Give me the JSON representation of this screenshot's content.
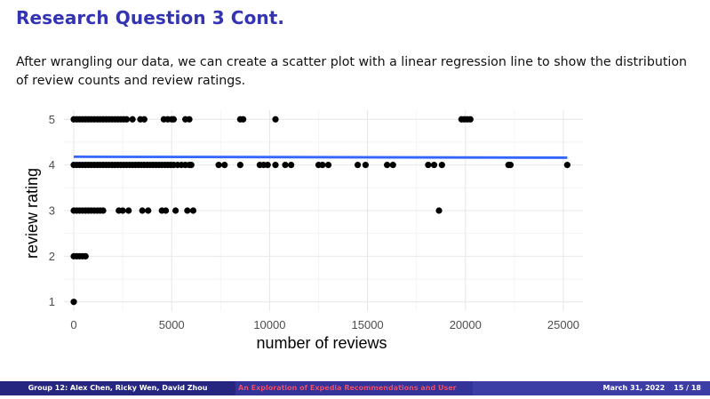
{
  "slide": {
    "title": "Research Question 3 Cont.",
    "body": "After wrangling our data, we can create a scatter plot with a linear regression line to show the distribution of review counts and review ratings."
  },
  "footer": {
    "authors": "Group 12: Alex Chen, Ricky Wen, David Zhou",
    "talk_title": "An Exploration of Expedia Recommendations and User",
    "date": "March 31, 2022",
    "page": "15 / 18"
  },
  "colors": {
    "title": "#3333b3",
    "regression_line": "#3366ff",
    "points": "#000000"
  },
  "chart_data": {
    "type": "scatter",
    "title": "",
    "xlabel": "number of reviews",
    "ylabel": "review rating",
    "xlim": [
      -500,
      26000
    ],
    "ylim": [
      0.8,
      5.2
    ],
    "x_ticks": [
      0,
      5000,
      10000,
      15000,
      20000,
      25000
    ],
    "x_tick_labels": [
      "0",
      "5000",
      "10000",
      "15000",
      "20000",
      "25000"
    ],
    "y_ticks": [
      1,
      2,
      3,
      4,
      5
    ],
    "y_tick_labels": [
      "1",
      "2",
      "3",
      "4",
      "5"
    ],
    "grid": true,
    "regression_line": {
      "x": [
        0,
        25200
      ],
      "y": [
        4.18,
        4.16
      ]
    },
    "points": [
      {
        "x": 0,
        "y": 1
      },
      {
        "x": 0,
        "y": 2
      },
      {
        "x": 150,
        "y": 2
      },
      {
        "x": 300,
        "y": 2
      },
      {
        "x": 450,
        "y": 2
      },
      {
        "x": 600,
        "y": 2
      },
      {
        "x": 0,
        "y": 3
      },
      {
        "x": 150,
        "y": 3
      },
      {
        "x": 300,
        "y": 3
      },
      {
        "x": 450,
        "y": 3
      },
      {
        "x": 600,
        "y": 3
      },
      {
        "x": 750,
        "y": 3
      },
      {
        "x": 900,
        "y": 3
      },
      {
        "x": 1050,
        "y": 3
      },
      {
        "x": 1200,
        "y": 3
      },
      {
        "x": 1350,
        "y": 3
      },
      {
        "x": 1500,
        "y": 3
      },
      {
        "x": 2300,
        "y": 3
      },
      {
        "x": 2500,
        "y": 3
      },
      {
        "x": 2800,
        "y": 3
      },
      {
        "x": 3500,
        "y": 3
      },
      {
        "x": 3800,
        "y": 3
      },
      {
        "x": 4500,
        "y": 3
      },
      {
        "x": 4700,
        "y": 3
      },
      {
        "x": 5200,
        "y": 3
      },
      {
        "x": 5800,
        "y": 3
      },
      {
        "x": 6100,
        "y": 3
      },
      {
        "x": 18650,
        "y": 3
      },
      {
        "x": 0,
        "y": 4
      },
      {
        "x": 150,
        "y": 4
      },
      {
        "x": 300,
        "y": 4
      },
      {
        "x": 450,
        "y": 4
      },
      {
        "x": 600,
        "y": 4
      },
      {
        "x": 750,
        "y": 4
      },
      {
        "x": 900,
        "y": 4
      },
      {
        "x": 1050,
        "y": 4
      },
      {
        "x": 1200,
        "y": 4
      },
      {
        "x": 1350,
        "y": 4
      },
      {
        "x": 1500,
        "y": 4
      },
      {
        "x": 1650,
        "y": 4
      },
      {
        "x": 1800,
        "y": 4
      },
      {
        "x": 1950,
        "y": 4
      },
      {
        "x": 2100,
        "y": 4
      },
      {
        "x": 2250,
        "y": 4
      },
      {
        "x": 2400,
        "y": 4
      },
      {
        "x": 2550,
        "y": 4
      },
      {
        "x": 2700,
        "y": 4
      },
      {
        "x": 2850,
        "y": 4
      },
      {
        "x": 3000,
        "y": 4
      },
      {
        "x": 3150,
        "y": 4
      },
      {
        "x": 3300,
        "y": 4
      },
      {
        "x": 3450,
        "y": 4
      },
      {
        "x": 3600,
        "y": 4
      },
      {
        "x": 3750,
        "y": 4
      },
      {
        "x": 3900,
        "y": 4
      },
      {
        "x": 4050,
        "y": 4
      },
      {
        "x": 4200,
        "y": 4
      },
      {
        "x": 4350,
        "y": 4
      },
      {
        "x": 4500,
        "y": 4
      },
      {
        "x": 4650,
        "y": 4
      },
      {
        "x": 4800,
        "y": 4
      },
      {
        "x": 4950,
        "y": 4
      },
      {
        "x": 5100,
        "y": 4
      },
      {
        "x": 5300,
        "y": 4
      },
      {
        "x": 5500,
        "y": 4
      },
      {
        "x": 5700,
        "y": 4
      },
      {
        "x": 5900,
        "y": 4
      },
      {
        "x": 6000,
        "y": 4
      },
      {
        "x": 7400,
        "y": 4
      },
      {
        "x": 7700,
        "y": 4
      },
      {
        "x": 8500,
        "y": 4
      },
      {
        "x": 9500,
        "y": 4
      },
      {
        "x": 9700,
        "y": 4
      },
      {
        "x": 9900,
        "y": 4
      },
      {
        "x": 10300,
        "y": 4
      },
      {
        "x": 10800,
        "y": 4
      },
      {
        "x": 11100,
        "y": 4
      },
      {
        "x": 12500,
        "y": 4
      },
      {
        "x": 12700,
        "y": 4
      },
      {
        "x": 13000,
        "y": 4
      },
      {
        "x": 14500,
        "y": 4
      },
      {
        "x": 14900,
        "y": 4
      },
      {
        "x": 16000,
        "y": 4
      },
      {
        "x": 16300,
        "y": 4
      },
      {
        "x": 18100,
        "y": 4
      },
      {
        "x": 18400,
        "y": 4
      },
      {
        "x": 18800,
        "y": 4
      },
      {
        "x": 22200,
        "y": 4
      },
      {
        "x": 22300,
        "y": 4
      },
      {
        "x": 25200,
        "y": 4
      },
      {
        "x": 0,
        "y": 5
      },
      {
        "x": 150,
        "y": 5
      },
      {
        "x": 300,
        "y": 5
      },
      {
        "x": 450,
        "y": 5
      },
      {
        "x": 600,
        "y": 5
      },
      {
        "x": 750,
        "y": 5
      },
      {
        "x": 900,
        "y": 5
      },
      {
        "x": 1050,
        "y": 5
      },
      {
        "x": 1200,
        "y": 5
      },
      {
        "x": 1350,
        "y": 5
      },
      {
        "x": 1500,
        "y": 5
      },
      {
        "x": 1650,
        "y": 5
      },
      {
        "x": 1800,
        "y": 5
      },
      {
        "x": 1950,
        "y": 5
      },
      {
        "x": 2100,
        "y": 5
      },
      {
        "x": 2250,
        "y": 5
      },
      {
        "x": 2400,
        "y": 5
      },
      {
        "x": 2550,
        "y": 5
      },
      {
        "x": 2700,
        "y": 5
      },
      {
        "x": 3000,
        "y": 5
      },
      {
        "x": 3400,
        "y": 5
      },
      {
        "x": 3600,
        "y": 5
      },
      {
        "x": 4600,
        "y": 5
      },
      {
        "x": 4800,
        "y": 5
      },
      {
        "x": 5000,
        "y": 5
      },
      {
        "x": 5100,
        "y": 5
      },
      {
        "x": 5700,
        "y": 5
      },
      {
        "x": 5900,
        "y": 5
      },
      {
        "x": 8500,
        "y": 5
      },
      {
        "x": 8650,
        "y": 5
      },
      {
        "x": 10300,
        "y": 5
      },
      {
        "x": 19800,
        "y": 5
      },
      {
        "x": 19950,
        "y": 5
      },
      {
        "x": 20100,
        "y": 5
      },
      {
        "x": 20250,
        "y": 5
      }
    ]
  }
}
